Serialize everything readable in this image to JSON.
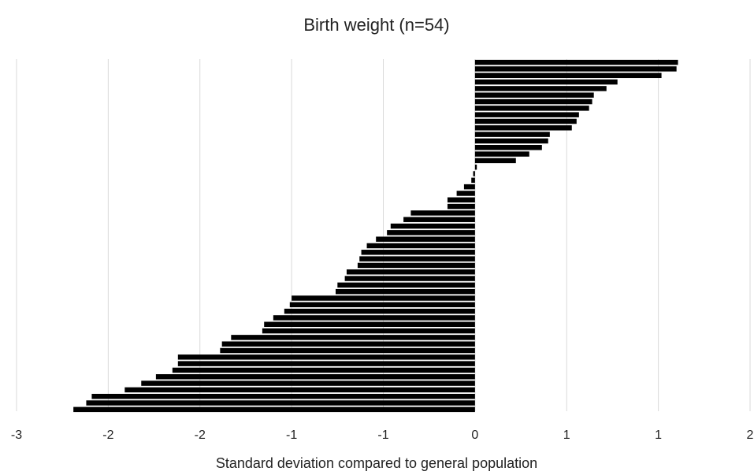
{
  "chart_data": {
    "type": "hbar",
    "title": "Birth weight (n=54)",
    "x_label": "Standard deviation compared to general population",
    "color": "#000000",
    "grid": true,
    "values": [
      1.107,
      1.099,
      1.017,
      0.777,
      0.717,
      0.648,
      0.639,
      0.622,
      0.567,
      0.554,
      0.528,
      0.408,
      0.399,
      0.365,
      0.296,
      0.223,
      0.01,
      -0.01,
      -0.02,
      -0.06,
      -0.1,
      -0.15,
      -0.15,
      -0.35,
      -0.39,
      -0.46,
      -0.48,
      -0.54,
      -0.59,
      -0.62,
      -0.63,
      -0.64,
      -0.7,
      -0.71,
      -0.75,
      -0.76,
      -1.0,
      -1.01,
      -1.04,
      -1.1,
      -1.15,
      -1.16,
      -1.33,
      -1.38,
      -1.39,
      -1.62,
      -1.62,
      -1.65,
      -1.74,
      -1.82,
      -1.91,
      -2.09,
      -2.12,
      -2.19
    ],
    "xlim": [
      -2.5,
      1.5
    ],
    "xticks": [
      {
        "value": -2.5,
        "label": "-3"
      },
      -2,
      {
        "value": -1.5,
        "label": "-2"
      },
      -1,
      {
        "value": -0.5,
        "label": "-1"
      },
      0,
      {
        "value": 0.5,
        "label": "1"
      },
      1,
      {
        "value": 1.5,
        "label": "2"
      }
    ]
  }
}
